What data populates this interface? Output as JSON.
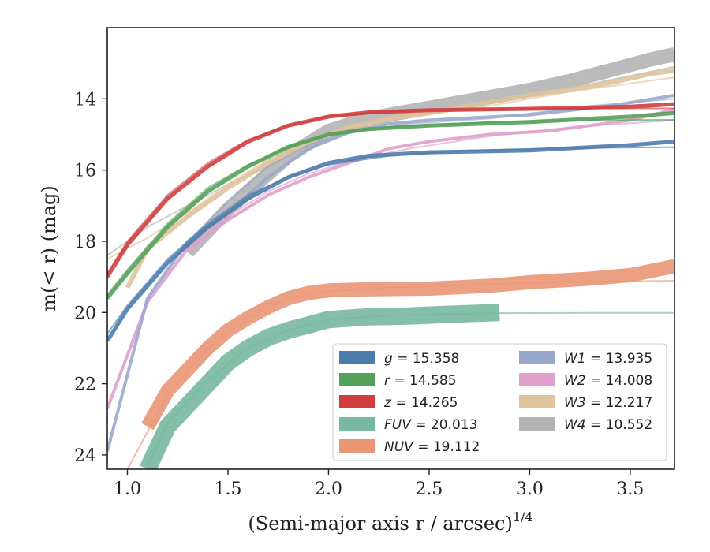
{
  "chart_data": {
    "type": "line",
    "xlabel": "(Semi-major axis r / arcsec)",
    "xlabel_superscript": "1/4",
    "ylabel": "m(< r) (mag)",
    "xlim": [
      0.9,
      3.72
    ],
    "ylim": [
      24.4,
      12.0
    ],
    "y_inverted": true,
    "x_ticks": [
      1.0,
      1.5,
      2.0,
      2.5,
      3.0,
      3.5
    ],
    "x_tick_labels": [
      "1.0",
      "1.5",
      "2.0",
      "2.5",
      "3.0",
      "3.5"
    ],
    "y_ticks": [
      14,
      16,
      18,
      20,
      22,
      24
    ],
    "y_tick_labels": [
      "14",
      "16",
      "18",
      "20",
      "22",
      "24"
    ],
    "grid": false,
    "legend_position": "lower-right",
    "series": [
      {
        "key": "g",
        "prefix": "",
        "label": "g",
        "value": "15.358",
        "color": "#4c7bad",
        "width": 5,
        "data": [
          [
            0.9,
            20.8
          ],
          [
            1.0,
            19.9
          ],
          [
            1.2,
            18.6
          ],
          [
            1.4,
            17.6
          ],
          [
            1.6,
            16.8
          ],
          [
            1.8,
            16.2
          ],
          [
            2.0,
            15.8
          ],
          [
            2.2,
            15.6
          ],
          [
            2.5,
            15.5
          ],
          [
            3.0,
            15.45
          ],
          [
            3.5,
            15.3
          ],
          [
            3.72,
            15.2
          ]
        ],
        "model": [
          [
            0.9,
            20.6
          ],
          [
            1.0,
            19.8
          ],
          [
            1.2,
            18.5
          ],
          [
            1.4,
            17.5
          ],
          [
            1.6,
            16.7
          ],
          [
            1.8,
            16.2
          ],
          [
            2.0,
            15.85
          ],
          [
            2.3,
            15.6
          ],
          [
            2.7,
            15.45
          ],
          [
            3.2,
            15.38
          ],
          [
            3.72,
            15.36
          ]
        ]
      },
      {
        "key": "r",
        "prefix": "",
        "label": "r",
        "value": "14.585",
        "color": "#55a15a",
        "width": 5,
        "data": [
          [
            0.9,
            19.6
          ],
          [
            1.0,
            18.9
          ],
          [
            1.2,
            17.6
          ],
          [
            1.4,
            16.6
          ],
          [
            1.6,
            15.9
          ],
          [
            1.8,
            15.35
          ],
          [
            2.0,
            15.0
          ],
          [
            2.2,
            14.85
          ],
          [
            2.5,
            14.75
          ],
          [
            3.0,
            14.65
          ],
          [
            3.5,
            14.5
          ],
          [
            3.72,
            14.4
          ]
        ],
        "model": [
          [
            0.9,
            19.5
          ],
          [
            1.0,
            18.8
          ],
          [
            1.2,
            17.5
          ],
          [
            1.4,
            16.5
          ],
          [
            1.6,
            15.85
          ],
          [
            1.8,
            15.35
          ],
          [
            2.0,
            15.0
          ],
          [
            2.3,
            14.8
          ],
          [
            2.8,
            14.65
          ],
          [
            3.3,
            14.6
          ],
          [
            3.72,
            14.59
          ]
        ]
      },
      {
        "key": "z",
        "prefix": "",
        "label": "z",
        "value": "14.265",
        "color": "#d03d3f",
        "width": 5,
        "data": [
          [
            0.9,
            19.0
          ],
          [
            1.0,
            18.1
          ],
          [
            1.2,
            16.8
          ],
          [
            1.4,
            15.9
          ],
          [
            1.6,
            15.2
          ],
          [
            1.8,
            14.75
          ],
          [
            2.0,
            14.5
          ],
          [
            2.2,
            14.38
          ],
          [
            2.5,
            14.32
          ],
          [
            3.0,
            14.28
          ],
          [
            3.5,
            14.22
          ],
          [
            3.72,
            14.15
          ]
        ],
        "model": [
          [
            0.9,
            18.9
          ],
          [
            1.0,
            18.0
          ],
          [
            1.2,
            16.7
          ],
          [
            1.4,
            15.8
          ],
          [
            1.6,
            15.15
          ],
          [
            1.8,
            14.75
          ],
          [
            2.0,
            14.5
          ],
          [
            2.3,
            14.35
          ],
          [
            2.8,
            14.29
          ],
          [
            3.3,
            14.27
          ],
          [
            3.72,
            14.27
          ]
        ]
      },
      {
        "key": "FUV",
        "prefix": "",
        "label": "FUV",
        "value": "20.013",
        "color": "#78b8a0",
        "width": 22,
        "data": [
          [
            1.1,
            24.4
          ],
          [
            1.2,
            23.2
          ],
          [
            1.3,
            22.6
          ],
          [
            1.4,
            22.0
          ],
          [
            1.5,
            21.4
          ],
          [
            1.6,
            21.0
          ],
          [
            1.7,
            20.7
          ],
          [
            1.8,
            20.5
          ],
          [
            1.9,
            20.35
          ],
          [
            2.0,
            20.2
          ],
          [
            2.2,
            20.12
          ],
          [
            2.4,
            20.1
          ],
          [
            2.6,
            20.05
          ],
          [
            2.85,
            20.0
          ]
        ],
        "model": [
          [
            1.1,
            24.3
          ],
          [
            1.2,
            23.1
          ],
          [
            1.4,
            21.9
          ],
          [
            1.6,
            21.0
          ],
          [
            1.8,
            20.5
          ],
          [
            2.0,
            20.2
          ],
          [
            2.3,
            20.08
          ],
          [
            2.8,
            20.02
          ],
          [
            3.3,
            20.01
          ],
          [
            3.72,
            20.01
          ]
        ]
      },
      {
        "key": "NUV",
        "prefix": "",
        "label": "NUV",
        "value": "19.112",
        "color": "#ea9675",
        "width": 18,
        "data": [
          [
            1.1,
            23.2
          ],
          [
            1.2,
            22.2
          ],
          [
            1.3,
            21.6
          ],
          [
            1.4,
            21.0
          ],
          [
            1.5,
            20.5
          ],
          [
            1.6,
            20.15
          ],
          [
            1.7,
            19.85
          ],
          [
            1.8,
            19.6
          ],
          [
            1.9,
            19.45
          ],
          [
            2.0,
            19.38
          ],
          [
            2.2,
            19.35
          ],
          [
            2.5,
            19.33
          ],
          [
            2.8,
            19.25
          ],
          [
            3.0,
            19.15
          ],
          [
            3.3,
            19.05
          ],
          [
            3.5,
            18.95
          ],
          [
            3.72,
            18.7
          ]
        ],
        "model": [
          [
            1.0,
            24.4
          ],
          [
            1.2,
            22.3
          ],
          [
            1.4,
            21.0
          ],
          [
            1.6,
            20.15
          ],
          [
            1.8,
            19.6
          ],
          [
            2.0,
            19.4
          ],
          [
            2.3,
            19.3
          ],
          [
            2.8,
            19.2
          ],
          [
            3.3,
            19.13
          ],
          [
            3.72,
            19.11
          ]
        ]
      },
      {
        "key": "W1",
        "prefix": "W",
        "label": "1",
        "value": "13.935",
        "color": "#9aa8cc",
        "width": 4,
        "data": [
          [
            0.9,
            23.9
          ],
          [
            1.1,
            19.6
          ],
          [
            1.3,
            18.0
          ],
          [
            1.5,
            17.2
          ],
          [
            1.7,
            16.2
          ],
          [
            1.9,
            15.4
          ],
          [
            2.1,
            14.95
          ],
          [
            2.3,
            14.7
          ],
          [
            2.5,
            14.6
          ],
          [
            3.0,
            14.45
          ],
          [
            3.4,
            14.2
          ],
          [
            3.72,
            13.9
          ]
        ],
        "model": [
          [
            1.3,
            18.0
          ],
          [
            1.5,
            16.9
          ],
          [
            1.7,
            15.9
          ],
          [
            1.9,
            15.3
          ],
          [
            2.1,
            14.95
          ],
          [
            2.4,
            14.7
          ],
          [
            2.8,
            14.55
          ],
          [
            3.3,
            14.2
          ],
          [
            3.72,
            14.0
          ]
        ]
      },
      {
        "key": "W2",
        "prefix": "W",
        "label": "2",
        "value": "14.008",
        "color": "#e0a0cc",
        "width": 4,
        "data": [
          [
            0.9,
            22.7
          ],
          [
            1.1,
            19.7
          ],
          [
            1.3,
            18.2
          ],
          [
            1.5,
            17.4
          ],
          [
            1.7,
            16.7
          ],
          [
            1.9,
            16.2
          ],
          [
            2.1,
            15.8
          ],
          [
            2.3,
            15.4
          ],
          [
            2.5,
            15.2
          ],
          [
            2.8,
            15.0
          ],
          [
            3.1,
            14.9
          ],
          [
            3.5,
            14.6
          ],
          [
            3.72,
            14.3
          ]
        ],
        "model": [
          [
            1.3,
            18.3
          ],
          [
            1.5,
            17.3
          ],
          [
            1.7,
            16.6
          ],
          [
            1.9,
            16.1
          ],
          [
            2.1,
            15.75
          ],
          [
            2.4,
            15.4
          ],
          [
            2.8,
            15.05
          ],
          [
            3.2,
            14.8
          ],
          [
            3.72,
            14.6
          ]
        ]
      },
      {
        "key": "W3",
        "prefix": "W",
        "label": "3",
        "value": "12.217",
        "color": "#dfc39c",
        "width": 6,
        "data": [
          [
            1.0,
            19.3
          ],
          [
            1.1,
            18.2
          ],
          [
            1.3,
            17.3
          ],
          [
            1.5,
            16.5
          ],
          [
            1.7,
            15.8
          ],
          [
            1.9,
            15.2
          ],
          [
            2.1,
            14.8
          ],
          [
            2.3,
            14.55
          ],
          [
            2.5,
            14.4
          ],
          [
            2.8,
            14.1
          ],
          [
            3.0,
            13.9
          ],
          [
            3.2,
            13.75
          ],
          [
            3.4,
            13.55
          ],
          [
            3.6,
            13.3
          ],
          [
            3.72,
            13.2
          ]
        ],
        "model": [
          [
            0.9,
            18.5
          ],
          [
            1.1,
            17.9
          ],
          [
            1.3,
            17.2
          ],
          [
            1.5,
            16.4
          ],
          [
            1.7,
            15.7
          ],
          [
            1.9,
            15.2
          ],
          [
            2.1,
            14.8
          ],
          [
            2.4,
            14.5
          ],
          [
            2.8,
            14.2
          ],
          [
            3.2,
            13.8
          ],
          [
            3.72,
            13.4
          ]
        ]
      },
      {
        "key": "W4",
        "prefix": "W",
        "label": "4",
        "value": "10.552",
        "color": "#b4b4b4",
        "width": 18,
        "data": [
          [
            1.3,
            18.3
          ],
          [
            1.4,
            17.7
          ],
          [
            1.5,
            17.1
          ],
          [
            1.6,
            16.6
          ],
          [
            1.7,
            16.1
          ],
          [
            1.8,
            15.6
          ],
          [
            1.9,
            15.25
          ],
          [
            2.0,
            14.9
          ],
          [
            2.2,
            14.55
          ],
          [
            2.4,
            14.35
          ],
          [
            2.6,
            14.15
          ],
          [
            2.8,
            13.95
          ],
          [
            3.0,
            13.75
          ],
          [
            3.2,
            13.5
          ],
          [
            3.4,
            13.2
          ],
          [
            3.6,
            12.9
          ],
          [
            3.72,
            12.75
          ]
        ],
        "model": [
          [
            0.9,
            18.4
          ],
          [
            1.1,
            17.6
          ],
          [
            1.3,
            17.0
          ],
          [
            1.5,
            16.4
          ],
          [
            1.7,
            15.9
          ],
          [
            1.9,
            15.3
          ],
          [
            2.1,
            14.9
          ],
          [
            2.4,
            14.5
          ],
          [
            2.8,
            14.1
          ],
          [
            3.2,
            13.7
          ],
          [
            3.72,
            13.1
          ]
        ]
      }
    ],
    "legend_columns": [
      [
        "g",
        "r",
        "z",
        "FUV",
        "NUV"
      ],
      [
        "W1",
        "W2",
        "W3",
        "W4"
      ]
    ]
  }
}
